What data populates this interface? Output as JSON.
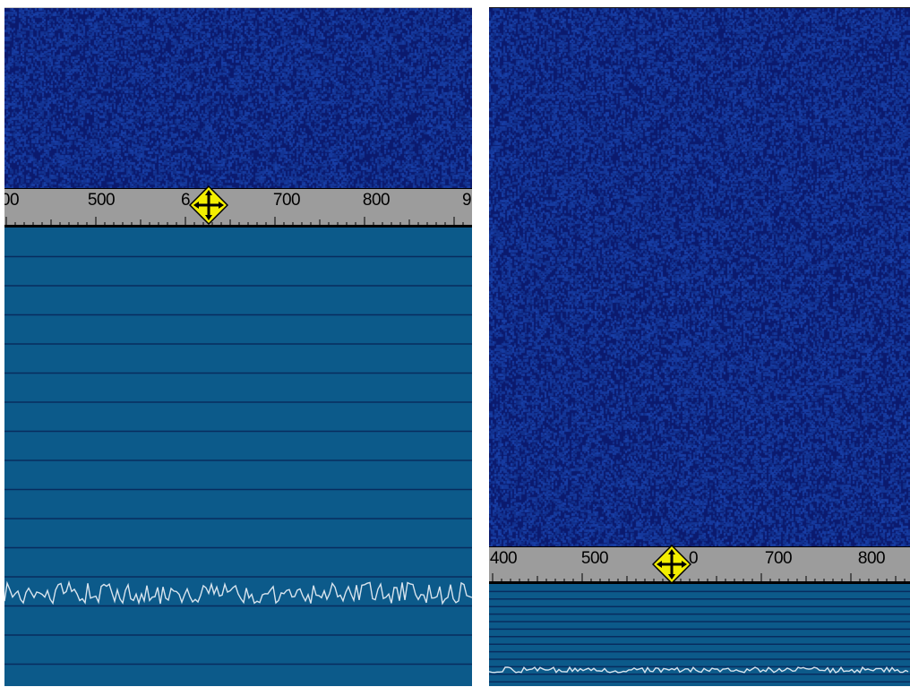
{
  "colors": {
    "waterfall_base": "#0b1a6e",
    "ruler_bg": "#9c9c9c",
    "spectrum_bg": "#0c5a8a",
    "gridline": "#082c5e",
    "trace": "#d8e4ee",
    "marker_fill": "#f3ee00"
  },
  "icons": {
    "marker": "move-cursor-icon"
  },
  "left_panel": {
    "ruler_labels": [
      "00",
      "500",
      "6",
      "700",
      "800",
      "9"
    ],
    "marker_value_fraction": 0.43
  },
  "right_panel": {
    "ruler_labels": [
      "400",
      "500",
      "0",
      "700",
      "800"
    ],
    "marker_value_fraction": 0.43
  }
}
